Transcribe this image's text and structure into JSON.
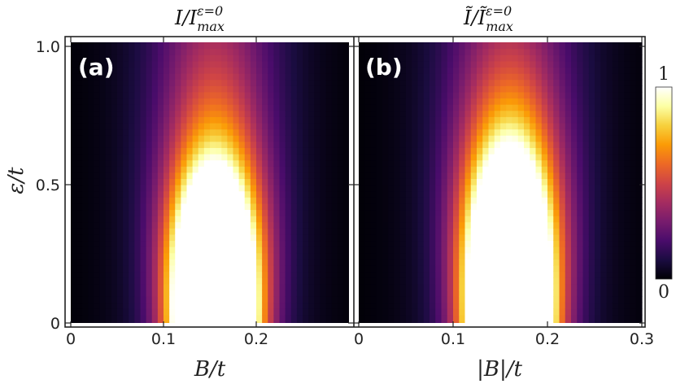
{
  "chart_data": [
    {
      "type": "heatmap",
      "panel": "(a)",
      "title": "I/I_max^{ε=0}",
      "title_main": "I/I",
      "title_sup": "ε=0",
      "title_sub": "max",
      "xlabel": "B/t",
      "ylabel": "ε/t",
      "xlim": [
        0,
        0.3
      ],
      "ylim": [
        0,
        1.0
      ],
      "x_ticks": [
        "0",
        "0.1",
        "0.2"
      ],
      "x_tick_values": [
        0,
        0.1,
        0.2
      ],
      "y_ticks": [
        "0",
        "0.5",
        "1.0"
      ],
      "y_tick_values": [
        0,
        0.5,
        1.0
      ],
      "peak_B": 0.155,
      "saturated_region": {
        "B_min": 0.13,
        "B_max": 0.185,
        "eps_max": 0.35
      },
      "colormap": "inferno",
      "zlim": [
        0,
        1
      ]
    },
    {
      "type": "heatmap",
      "panel": "(b)",
      "title": "Ĩ/Ĩ_max^{ε=0}",
      "title_main": "Ĩ/Ĩ",
      "title_sup": "ε=0",
      "title_sub": "max",
      "xlabel": "|B|/t",
      "ylabel": "",
      "xlim": [
        0,
        0.3
      ],
      "ylim": [
        0,
        1.0
      ],
      "x_ticks": [
        "0",
        "0.1",
        "0.2",
        "0.3"
      ],
      "x_tick_values": [
        0,
        0.1,
        0.2,
        0.3
      ],
      "peak_B": 0.16,
      "saturated_region": {
        "B_min": 0.125,
        "B_max": 0.198,
        "eps_max": 0.4
      },
      "colormap": "inferno",
      "zlim": [
        0,
        1
      ]
    }
  ],
  "colorbar": {
    "top_label": "1",
    "bottom_label": "0",
    "colors": [
      "#000004",
      "#1b0c41",
      "#4a0c6b",
      "#781c6d",
      "#a52c60",
      "#cf4446",
      "#ed6925",
      "#fb9b06",
      "#f7d13d",
      "#fcffa4",
      "#ffffff"
    ]
  }
}
